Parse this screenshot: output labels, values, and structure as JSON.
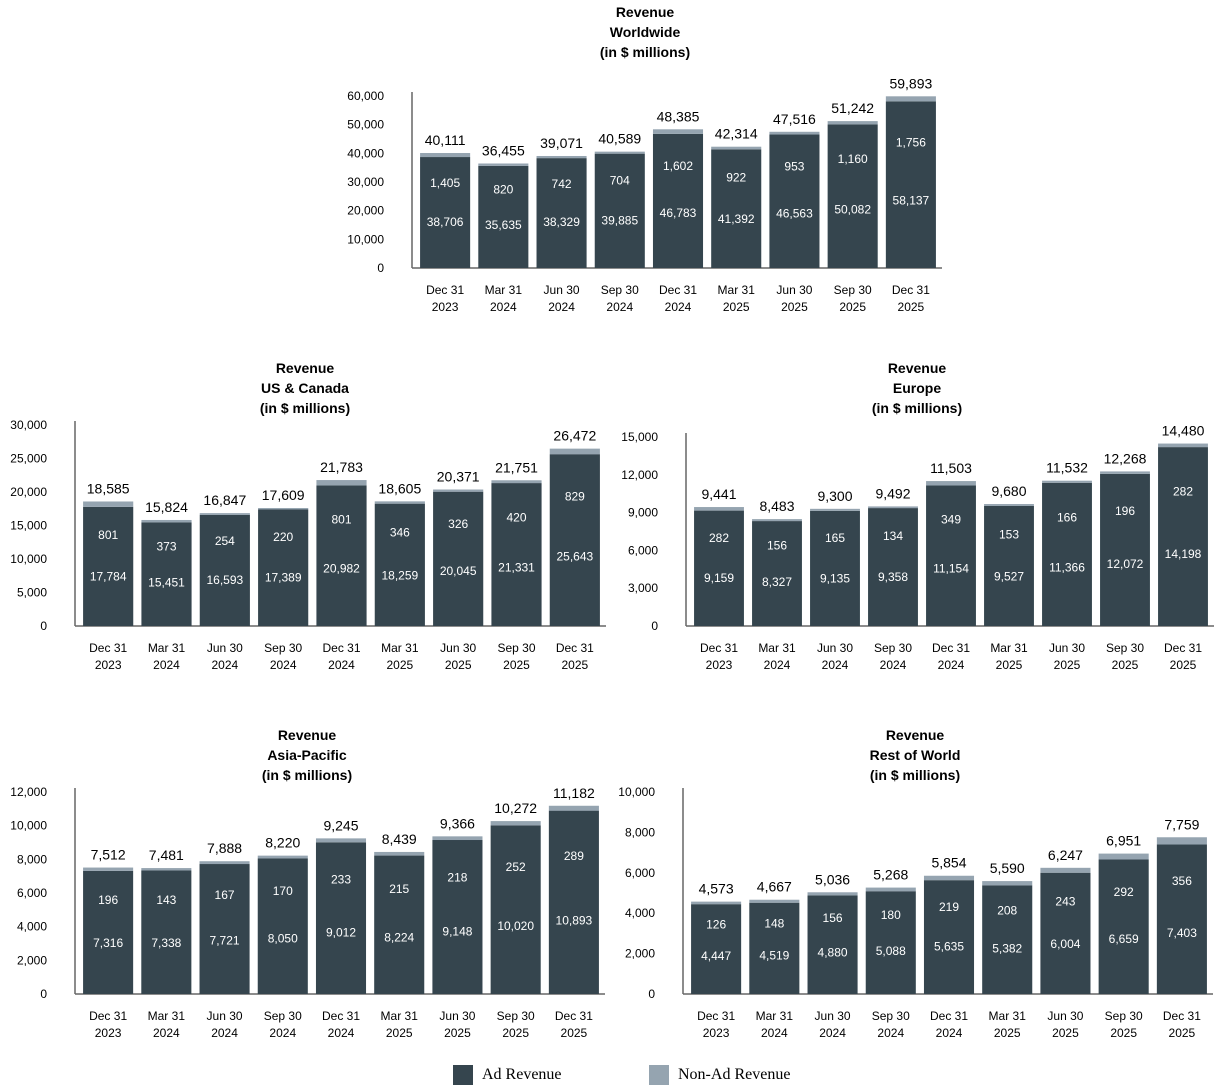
{
  "colors": {
    "ad": "#35454e",
    "non_ad": "#95a4b0",
    "axis": "#666666"
  },
  "legend": {
    "ad_label": "Ad Revenue",
    "non_ad_label": "Non-Ad Revenue"
  },
  "chart_data": [
    {
      "type": "bar",
      "stacked": true,
      "title": [
        "Revenue",
        "Worldwide",
        "(in $ millions)"
      ],
      "categories": [
        [
          "Dec 31",
          "2023"
        ],
        [
          "Mar 31",
          "2024"
        ],
        [
          "Jun 30",
          "2024"
        ],
        [
          "Sep 30",
          "2024"
        ],
        [
          "Dec 31",
          "2024"
        ],
        [
          "Mar 31",
          "2025"
        ],
        [
          "Jun 30",
          "2025"
        ],
        [
          "Sep 30",
          "2025"
        ],
        [
          "Dec 31",
          "2025"
        ]
      ],
      "ylim": [
        0,
        60000
      ],
      "yticks": [
        "0",
        "10,000",
        "20,000",
        "30,000",
        "40,000",
        "50,000",
        "60,000"
      ],
      "series": [
        {
          "name": "Ad Revenue",
          "values": [
            38706,
            35635,
            38329,
            39885,
            46783,
            41392,
            46563,
            50082,
            58137
          ],
          "labels": [
            "38,706",
            "35,635",
            "38,329",
            "39,885",
            "46,783",
            "41,392",
            "46,563",
            "50,082",
            "58,137"
          ]
        },
        {
          "name": "Non-Ad Revenue",
          "values": [
            1405,
            820,
            742,
            704,
            1602,
            922,
            953,
            1160,
            1756
          ],
          "labels": [
            "1,405",
            "820",
            "742",
            "704",
            "1,602",
            "922",
            "953",
            "1,160",
            "1,756"
          ]
        }
      ],
      "totals": [
        "40,111",
        "36,455",
        "39,071",
        "40,589",
        "48,385",
        "42,314",
        "47,516",
        "51,242",
        "59,893"
      ]
    },
    {
      "type": "bar",
      "stacked": true,
      "title": [
        "Revenue",
        "US & Canada",
        "(in $ millions)"
      ],
      "categories": [
        [
          "Dec 31",
          "2023"
        ],
        [
          "Mar 31",
          "2024"
        ],
        [
          "Jun 30",
          "2024"
        ],
        [
          "Sep 30",
          "2024"
        ],
        [
          "Dec 31",
          "2024"
        ],
        [
          "Mar 31",
          "2025"
        ],
        [
          "Jun 30",
          "2025"
        ],
        [
          "Sep 30",
          "2025"
        ],
        [
          "Dec 31",
          "2025"
        ]
      ],
      "ylim": [
        0,
        30000
      ],
      "yticks": [
        "0",
        "5,000",
        "10,000",
        "15,000",
        "20,000",
        "25,000",
        "30,000"
      ],
      "series": [
        {
          "name": "Ad Revenue",
          "values": [
            17784,
            15451,
            16593,
            17389,
            20982,
            18259,
            20045,
            21331,
            25643
          ],
          "labels": [
            "17,784",
            "15,451",
            "16,593",
            "17,389",
            "20,982",
            "18,259",
            "20,045",
            "21,331",
            "25,643"
          ]
        },
        {
          "name": "Non-Ad Revenue",
          "values": [
            801,
            373,
            254,
            220,
            801,
            346,
            326,
            420,
            829
          ],
          "labels": [
            "801",
            "373",
            "254",
            "220",
            "801",
            "346",
            "326",
            "420",
            "829"
          ]
        }
      ],
      "totals": [
        "18,585",
        "15,824",
        "16,847",
        "17,609",
        "21,783",
        "18,605",
        "20,371",
        "21,751",
        "26,472"
      ]
    },
    {
      "type": "bar",
      "stacked": true,
      "title": [
        "Revenue",
        "Europe",
        "(in $ millions)"
      ],
      "categories": [
        [
          "Dec 31",
          "2023"
        ],
        [
          "Mar 31",
          "2024"
        ],
        [
          "Jun 30",
          "2024"
        ],
        [
          "Sep 30",
          "2024"
        ],
        [
          "Dec 31",
          "2024"
        ],
        [
          "Mar 31",
          "2025"
        ],
        [
          "Jun 30",
          "2025"
        ],
        [
          "Sep 30",
          "2025"
        ],
        [
          "Dec 31",
          "2025"
        ]
      ],
      "ylim": [
        0,
        15000
      ],
      "yticks": [
        "0",
        "3,000",
        "6,000",
        "9,000",
        "12,000",
        "15,000"
      ],
      "series": [
        {
          "name": "Ad Revenue",
          "values": [
            9159,
            8327,
            9135,
            9358,
            11154,
            9527,
            11366,
            12072,
            14198
          ],
          "labels": [
            "9,159",
            "8,327",
            "9,135",
            "9,358",
            "11,154",
            "9,527",
            "11,366",
            "12,072",
            "14,198"
          ]
        },
        {
          "name": "Non-Ad Revenue",
          "values": [
            282,
            156,
            165,
            134,
            349,
            153,
            166,
            196,
            282
          ],
          "labels": [
            "282",
            "156",
            "165",
            "134",
            "349",
            "153",
            "166",
            "196",
            "282"
          ]
        }
      ],
      "totals": [
        "9,441",
        "8,483",
        "9,300",
        "9,492",
        "11,503",
        "9,680",
        "11,532",
        "12,268",
        "14,480"
      ]
    },
    {
      "type": "bar",
      "stacked": true,
      "title": [
        "Revenue",
        "Asia-Pacific",
        "(in $ millions)"
      ],
      "categories": [
        [
          "Dec 31",
          "2023"
        ],
        [
          "Mar 31",
          "2024"
        ],
        [
          "Jun 30",
          "2024"
        ],
        [
          "Sep 30",
          "2024"
        ],
        [
          "Dec 31",
          "2024"
        ],
        [
          "Mar 31",
          "2025"
        ],
        [
          "Jun 30",
          "2025"
        ],
        [
          "Sep 30",
          "2025"
        ],
        [
          "Dec 31",
          "2025"
        ]
      ],
      "ylim": [
        0,
        12000
      ],
      "yticks": [
        "0",
        "2,000",
        "4,000",
        "6,000",
        "8,000",
        "10,000",
        "12,000"
      ],
      "series": [
        {
          "name": "Ad Revenue",
          "values": [
            7316,
            7338,
            7721,
            8050,
            9012,
            8224,
            9148,
            10020,
            10893
          ],
          "labels": [
            "7,316",
            "7,338",
            "7,721",
            "8,050",
            "9,012",
            "8,224",
            "9,148",
            "10,020",
            "10,893"
          ]
        },
        {
          "name": "Non-Ad Revenue",
          "values": [
            196,
            143,
            167,
            170,
            233,
            215,
            218,
            252,
            289
          ],
          "labels": [
            "196",
            "143",
            "167",
            "170",
            "233",
            "215",
            "218",
            "252",
            "289"
          ]
        }
      ],
      "totals": [
        "7,512",
        "7,481",
        "7,888",
        "8,220",
        "9,245",
        "8,439",
        "9,366",
        "10,272",
        "11,182"
      ]
    },
    {
      "type": "bar",
      "stacked": true,
      "title": [
        "Revenue",
        "Rest of World",
        "(in $ millions)"
      ],
      "categories": [
        [
          "Dec 31",
          "2023"
        ],
        [
          "Mar 31",
          "2024"
        ],
        [
          "Jun 30",
          "2024"
        ],
        [
          "Sep 30",
          "2024"
        ],
        [
          "Dec 31",
          "2024"
        ],
        [
          "Mar 31",
          "2025"
        ],
        [
          "Jun 30",
          "2025"
        ],
        [
          "Sep 30",
          "2025"
        ],
        [
          "Dec 31",
          "2025"
        ]
      ],
      "ylim": [
        0,
        10000
      ],
      "yticks": [
        "0",
        "2,000",
        "4,000",
        "6,000",
        "8,000",
        "10,000"
      ],
      "series": [
        {
          "name": "Ad Revenue",
          "values": [
            4447,
            4519,
            4880,
            5088,
            5635,
            5382,
            6004,
            6659,
            7403
          ],
          "labels": [
            "4,447",
            "4,519",
            "4,880",
            "5,088",
            "5,635",
            "5,382",
            "6,004",
            "6,659",
            "7,403"
          ]
        },
        {
          "name": "Non-Ad Revenue",
          "values": [
            126,
            148,
            156,
            180,
            219,
            208,
            243,
            292,
            356
          ],
          "labels": [
            "126",
            "148",
            "156",
            "180",
            "219",
            "208",
            "243",
            "292",
            "356"
          ]
        }
      ],
      "totals": [
        "4,573",
        "4,667",
        "5,036",
        "5,268",
        "5,854",
        "5,590",
        "6,247",
        "6,951",
        "7,759"
      ]
    }
  ]
}
